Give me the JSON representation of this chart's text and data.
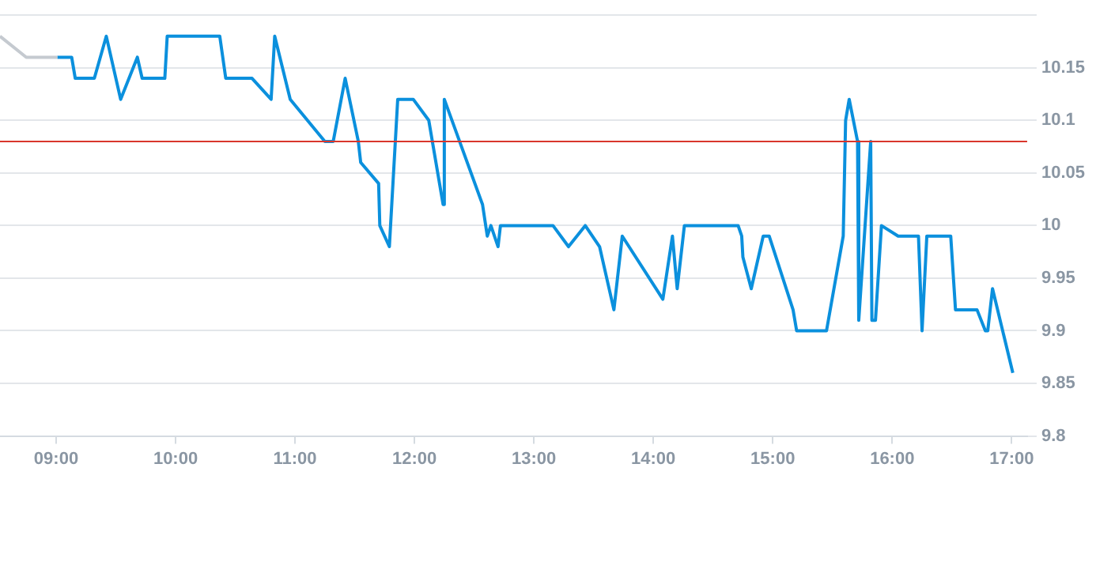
{
  "chart_data": {
    "type": "line",
    "xlim": [
      8.53,
      17.13
    ],
    "ylim": [
      9.8,
      10.2
    ],
    "xticks": [
      {
        "value": 9,
        "label": "09:00"
      },
      {
        "value": 10,
        "label": "10:00"
      },
      {
        "value": 11,
        "label": "11:00"
      },
      {
        "value": 12,
        "label": "12:00"
      },
      {
        "value": 13,
        "label": "13:00"
      },
      {
        "value": 14,
        "label": "14:00"
      },
      {
        "value": 15,
        "label": "15:00"
      },
      {
        "value": 16,
        "label": "16:00"
      },
      {
        "value": 17,
        "label": "17:00"
      }
    ],
    "yticks": [
      9.8,
      9.85,
      9.9,
      9.95,
      10,
      10.05,
      10.1,
      10.15,
      {
        "value": 10.2,
        "label": null
      }
    ],
    "grid": "y",
    "legend": false,
    "marker": "none",
    "line_style": "solid",
    "ref_lines": [
      {
        "axis": "y",
        "value": 10.08,
        "color": "#d9362b"
      }
    ],
    "series": [
      {
        "color": "#c5cad0",
        "x": [
          8.53,
          8.75,
          9.01
        ],
        "values": [
          10.18,
          10.16,
          10.16
        ]
      },
      {
        "color": "#0b90dd",
        "x": [
          9.01,
          9.13,
          9.16,
          9.32,
          9.42,
          9.54,
          9.68,
          9.72,
          9.91,
          9.93,
          10.37,
          10.42,
          10.64,
          10.8,
          10.83,
          10.96,
          11.25,
          11.32,
          11.42,
          11.53,
          11.55,
          11.7,
          11.71,
          11.79,
          11.86,
          11.99,
          12.12,
          12.24,
          12.25,
          12.57,
          12.61,
          12.64,
          12.7,
          12.72,
          13.16,
          13.29,
          13.43,
          13.55,
          13.67,
          13.74,
          14.08,
          14.16,
          14.2,
          14.26,
          14.71,
          14.74,
          14.75,
          14.82,
          14.92,
          14.97,
          15.17,
          15.2,
          15.45,
          15.59,
          15.61,
          15.64,
          15.71,
          15.72,
          15.82,
          15.83,
          15.86,
          15.91,
          16.05,
          16.22,
          16.25,
          16.29,
          16.49,
          16.53,
          16.71,
          16.78,
          16.8,
          16.84,
          17.01
        ],
        "values": [
          10.16,
          10.16,
          10.14,
          10.14,
          10.18,
          10.12,
          10.16,
          10.14,
          10.14,
          10.18,
          10.18,
          10.14,
          10.14,
          10.12,
          10.18,
          10.12,
          10.08,
          10.08,
          10.14,
          10.08,
          10.06,
          10.04,
          10,
          9.98,
          10.12,
          10.12,
          10.1,
          10.02,
          10.12,
          10.02,
          9.99,
          10,
          9.98,
          10,
          10,
          9.98,
          10,
          9.98,
          9.92,
          9.99,
          9.93,
          9.99,
          9.94,
          10,
          10,
          9.99,
          9.97,
          9.94,
          9.99,
          9.99,
          9.92,
          9.9,
          9.9,
          9.99,
          10.1,
          10.12,
          10.08,
          9.91,
          10.08,
          9.91,
          9.91,
          10,
          9.99,
          9.99,
          9.9,
          9.99,
          9.99,
          9.92,
          9.92,
          9.9,
          9.9,
          9.94,
          9.86
        ]
      }
    ]
  }
}
